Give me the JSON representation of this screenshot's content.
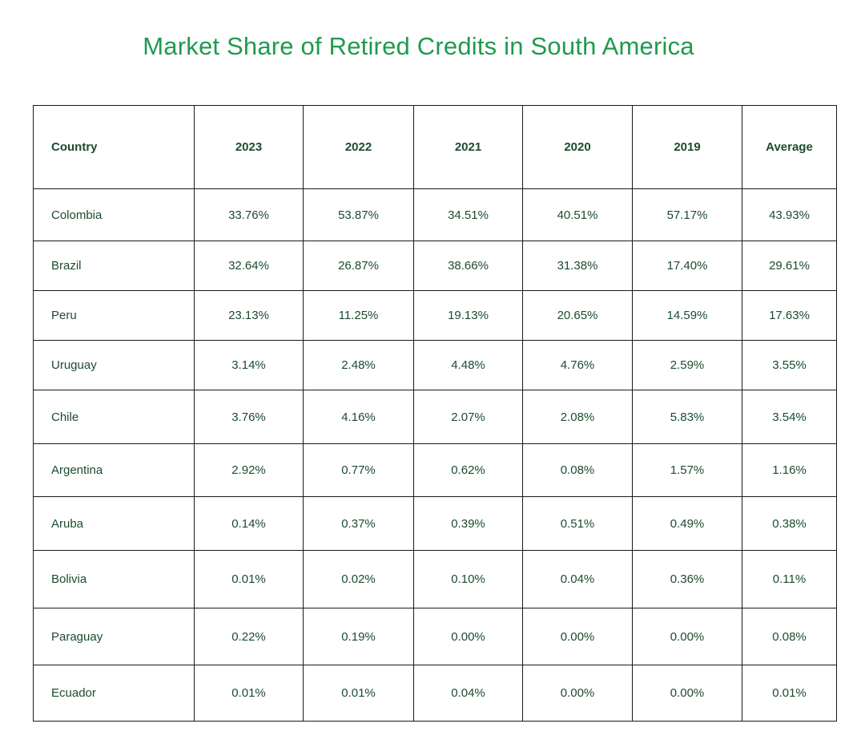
{
  "chart_data": {
    "type": "table",
    "title": "Market Share of Retired Credits in South America",
    "columns": [
      "Country",
      "2023",
      "2022",
      "2021",
      "2020",
      "2019",
      "Average"
    ],
    "rows": [
      [
        "Colombia",
        "33.76%",
        "53.87%",
        "34.51%",
        "40.51%",
        "57.17%",
        "43.93%"
      ],
      [
        "Brazil",
        "32.64%",
        "26.87%",
        "38.66%",
        "31.38%",
        "17.40%",
        "29.61%"
      ],
      [
        "Peru",
        "23.13%",
        "11.25%",
        "19.13%",
        "20.65%",
        "14.59%",
        "17.63%"
      ],
      [
        "Uruguay",
        "3.14%",
        "2.48%",
        "4.48%",
        "4.76%",
        "2.59%",
        "3.55%"
      ],
      [
        "Chile",
        "3.76%",
        "4.16%",
        "2.07%",
        "2.08%",
        "5.83%",
        "3.54%"
      ],
      [
        "Argentina",
        "2.92%",
        "0.77%",
        "0.62%",
        "0.08%",
        "1.57%",
        "1.16%"
      ],
      [
        "Aruba",
        "0.14%",
        "0.37%",
        "0.39%",
        "0.51%",
        "0.49%",
        "0.38%"
      ],
      [
        "Bolivia",
        "0.01%",
        "0.02%",
        "0.10%",
        "0.04%",
        "0.36%",
        "0.11%"
      ],
      [
        "Paraguay",
        "0.22%",
        "0.19%",
        "0.00%",
        "0.00%",
        "0.00%",
        "0.08%"
      ],
      [
        "Ecuador",
        "0.01%",
        "0.01%",
        "0.04%",
        "0.00%",
        "0.00%",
        "0.01%"
      ]
    ]
  },
  "colors": {
    "title": "#1f9a4e",
    "text": "#1c4b2f",
    "border": "#1a1a1a"
  }
}
